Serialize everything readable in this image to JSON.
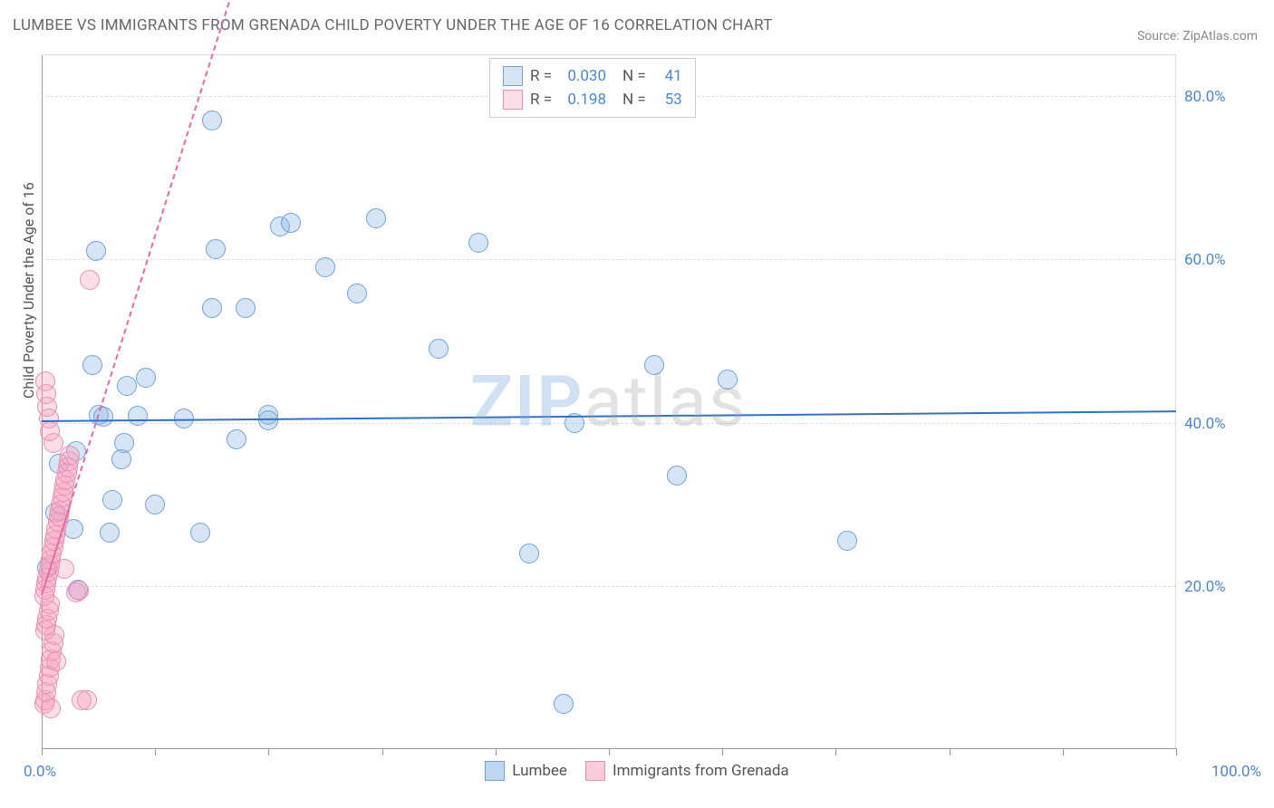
{
  "title": "LUMBEE VS IMMIGRANTS FROM GRENADA CHILD POVERTY UNDER THE AGE OF 16 CORRELATION CHART",
  "source": "Source: ZipAtlas.com",
  "y_axis_label": "Child Poverty Under the Age of 16",
  "watermark": {
    "zip": "ZIP",
    "atlas": "atlas"
  },
  "chart": {
    "type": "scatter",
    "xlim": [
      0,
      100
    ],
    "ylim": [
      0,
      85
    ],
    "x_tick_labels": {
      "min": "0.0%",
      "max": "100.0%"
    },
    "x_tick_positions": [
      0,
      10,
      20,
      30,
      40,
      50,
      60,
      70,
      80,
      90,
      100
    ],
    "y_grid": [
      {
        "value": 20,
        "label": "20.0%"
      },
      {
        "value": 40,
        "label": "40.0%"
      },
      {
        "value": 60,
        "label": "60.0%"
      },
      {
        "value": 80,
        "label": "80.0%"
      }
    ],
    "plot_background": "#ffffff",
    "grid_color": "#dcdcdc",
    "axis_color": "#999999",
    "marker_radius": 11,
    "marker_stroke_width": 1.5,
    "series": [
      {
        "name": "Lumbee",
        "fill": "rgba(135, 180, 230, 0.35)",
        "stroke": "#6da3dd",
        "R": "0.030",
        "N": "41",
        "trend": {
          "x1": 0,
          "y1": 40.3,
          "x2": 100,
          "y2": 41.5,
          "color": "#2f72c9",
          "dashed_continuation": false
        },
        "points": [
          [
            0.5,
            22.2
          ],
          [
            1.2,
            29.0
          ],
          [
            1.5,
            35.0
          ],
          [
            2.8,
            27.0
          ],
          [
            3.2,
            19.5
          ],
          [
            3.0,
            36.5
          ],
          [
            4.5,
            47.0
          ],
          [
            4.8,
            61.0
          ],
          [
            5.0,
            41.0
          ],
          [
            6.0,
            26.5
          ],
          [
            6.2,
            30.5
          ],
          [
            7.0,
            35.5
          ],
          [
            7.3,
            37.5
          ],
          [
            7.5,
            44.5
          ],
          [
            8.5,
            40.8
          ],
          [
            9.2,
            45.5
          ],
          [
            10.0,
            30.0
          ],
          [
            12.5,
            40.5
          ],
          [
            14.0,
            26.5
          ],
          [
            15.0,
            54.0
          ],
          [
            15.0,
            77.0
          ],
          [
            15.3,
            61.3
          ],
          [
            17.2,
            38.0
          ],
          [
            18.0,
            54.0
          ],
          [
            20.0,
            41.0
          ],
          [
            20.0,
            40.3
          ],
          [
            21.0,
            64.0
          ],
          [
            22.0,
            64.5
          ],
          [
            25.0,
            59.0
          ],
          [
            29.5,
            65.0
          ],
          [
            35.0,
            49.0
          ],
          [
            38.5,
            62.0
          ],
          [
            43.0,
            24.0
          ],
          [
            46.0,
            5.5
          ],
          [
            47.0,
            40.0
          ],
          [
            54.0,
            47.0
          ],
          [
            56.0,
            33.5
          ],
          [
            60.5,
            45.3
          ],
          [
            71.0,
            25.5
          ],
          [
            27.8,
            55.8
          ],
          [
            5.4,
            40.7
          ]
        ]
      },
      {
        "name": "Immigrants from Grenada",
        "fill": "rgba(245, 160, 190, 0.35)",
        "stroke": "#ea8fb0",
        "R": "0.198",
        "N": "53",
        "trend": {
          "x1": 0,
          "y1": 19.0,
          "x2": 2.5,
          "y2": 30.0,
          "color": "#e86aa0",
          "dashed_continuation": true,
          "dash_x2": 23,
          "dash_y2": 120
        },
        "points": [
          [
            0.2,
            5.5
          ],
          [
            0.3,
            6.0
          ],
          [
            0.4,
            7.0
          ],
          [
            0.5,
            8.0
          ],
          [
            0.6,
            9.0
          ],
          [
            0.7,
            10.0
          ],
          [
            0.8,
            11.0
          ],
          [
            0.9,
            12.0
          ],
          [
            1.0,
            13.0
          ],
          [
            1.1,
            14.0
          ],
          [
            0.3,
            14.5
          ],
          [
            0.4,
            15.2
          ],
          [
            0.5,
            16.0
          ],
          [
            0.6,
            17.0
          ],
          [
            0.7,
            17.8
          ],
          [
            0.2,
            18.8
          ],
          [
            0.3,
            19.5
          ],
          [
            0.4,
            20.3
          ],
          [
            0.5,
            21.0
          ],
          [
            0.6,
            21.8
          ],
          [
            3.0,
            19.2
          ],
          [
            3.3,
            19.4
          ],
          [
            0.7,
            22.5
          ],
          [
            0.8,
            23.2
          ],
          [
            0.9,
            24.0
          ],
          [
            1.0,
            24.8
          ],
          [
            1.1,
            25.5
          ],
          [
            1.2,
            26.2
          ],
          [
            1.3,
            27.0
          ],
          [
            1.4,
            27.8
          ],
          [
            1.5,
            28.5
          ],
          [
            1.6,
            29.2
          ],
          [
            1.7,
            30.0
          ],
          [
            1.8,
            30.8
          ],
          [
            1.9,
            31.5
          ],
          [
            2.0,
            32.3
          ],
          [
            2.1,
            33.0
          ],
          [
            2.2,
            33.8
          ],
          [
            2.3,
            34.5
          ],
          [
            2.4,
            35.3
          ],
          [
            2.5,
            36.0
          ],
          [
            1.0,
            37.5
          ],
          [
            0.7,
            39.0
          ],
          [
            0.6,
            40.5
          ],
          [
            0.5,
            42.0
          ],
          [
            0.4,
            43.5
          ],
          [
            0.3,
            45.0
          ],
          [
            4.2,
            57.5
          ],
          [
            3.5,
            6.0
          ],
          [
            4.0,
            6.0
          ],
          [
            2.0,
            22.1
          ],
          [
            0.8,
            5.0
          ],
          [
            1.3,
            10.8
          ]
        ]
      }
    ],
    "legend_bottom": [
      {
        "label": "Lumbee",
        "fill": "rgba(135, 180, 230, 0.55)",
        "stroke": "#6da3dd"
      },
      {
        "label": "Immigrants from Grenada",
        "fill": "rgba(245, 160, 190, 0.55)",
        "stroke": "#ea8fb0"
      }
    ],
    "legend_top_labels": {
      "R": "R =",
      "N": "N ="
    }
  }
}
